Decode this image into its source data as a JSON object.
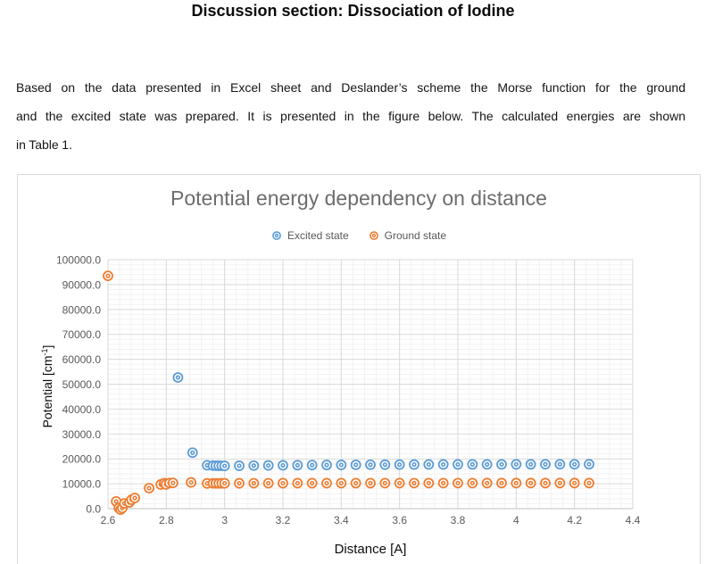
{
  "document": {
    "heading": "Discussion section: Dissociation of Iodine",
    "paragraph_lines": [
      "Based on the data presented in Excel sheet and Deslander’s scheme the Morse function for the ground",
      "and the excited state was prepared. It is presented in the figure below. The calculated energies are shown",
      "in Table 1."
    ]
  },
  "colors": {
    "excited_series": "#5B9BD5",
    "ground_series": "#ED7D31",
    "grid_major": "#d9d9d9",
    "grid_minor": "#f2f2f2",
    "axis_line": "#bfbfbf",
    "tick_text": "#595959",
    "title_text": "#6d6d6d",
    "axis_title_text": "#0b0b0b"
  },
  "chart_data": {
    "type": "scatter",
    "title": "Potential energy dependency on distance",
    "xlabel": "Distance [A]",
    "ylabel": "Potential [cm-1]",
    "ylabel_parts": {
      "base": "Potential [cm",
      "sup": "-1",
      "close": "]"
    },
    "xlim": [
      2.6,
      4.4
    ],
    "ylim": [
      0,
      100000
    ],
    "x_major_tick": 0.2,
    "x_minor_tick": 0.04,
    "y_major_tick": 10000,
    "y_minor_tick": 2000,
    "grid": true,
    "legend_position": "top",
    "x_tick_labels": [
      "2.6",
      "2.8",
      "3",
      "3.2",
      "3.4",
      "3.6",
      "3.8",
      "4",
      "4.2",
      "4.4"
    ],
    "y_tick_labels": [
      "0.0",
      "10000.0",
      "20000.0",
      "30000.0",
      "40000.0",
      "50000.0",
      "60000.0",
      "70000.0",
      "80000.0",
      "90000.0",
      "100000.0"
    ],
    "series": [
      {
        "name": "Excited state",
        "color": "#5B9BD5",
        "marker": "double-circle",
        "points": [
          [
            2.84,
            52700
          ],
          [
            2.89,
            22500
          ],
          [
            2.94,
            17430
          ],
          [
            2.96,
            17300
          ],
          [
            2.97,
            17260
          ],
          [
            2.98,
            17230
          ],
          [
            2.99,
            17200
          ],
          [
            3.0,
            17180
          ],
          [
            3.05,
            17230
          ],
          [
            3.1,
            17300
          ],
          [
            3.15,
            17360
          ],
          [
            3.2,
            17410
          ],
          [
            3.25,
            17460
          ],
          [
            3.3,
            17510
          ],
          [
            3.35,
            17550
          ],
          [
            3.4,
            17590
          ],
          [
            3.45,
            17620
          ],
          [
            3.5,
            17650
          ],
          [
            3.55,
            17680
          ],
          [
            3.6,
            17700
          ],
          [
            3.65,
            17720
          ],
          [
            3.7,
            17740
          ],
          [
            3.75,
            17760
          ],
          [
            3.8,
            17770
          ],
          [
            3.85,
            17780
          ],
          [
            3.9,
            17790
          ],
          [
            3.95,
            17800
          ],
          [
            4.0,
            17810
          ],
          [
            4.05,
            17820
          ],
          [
            4.1,
            17830
          ],
          [
            4.15,
            17840
          ],
          [
            4.2,
            17840
          ],
          [
            4.25,
            17850
          ]
        ]
      },
      {
        "name": "Ground state",
        "color": "#ED7D31",
        "marker": "double-circle",
        "points": [
          [
            2.6,
            93500
          ],
          [
            2.628,
            2900
          ],
          [
            2.637,
            250
          ],
          [
            2.643,
            -400
          ],
          [
            2.649,
            250
          ],
          [
            2.656,
            2100
          ],
          [
            2.673,
            2500
          ],
          [
            2.681,
            3600
          ],
          [
            2.692,
            4300
          ],
          [
            2.741,
            8250
          ],
          [
            2.781,
            9700
          ],
          [
            2.793,
            10250
          ],
          [
            2.799,
            9750
          ],
          [
            2.811,
            10300
          ],
          [
            2.823,
            10350
          ],
          [
            2.885,
            10550
          ],
          [
            2.94,
            10150
          ],
          [
            2.96,
            10170
          ],
          [
            2.97,
            10180
          ],
          [
            2.98,
            10180
          ],
          [
            2.99,
            10190
          ],
          [
            3.0,
            10190
          ],
          [
            3.05,
            10200
          ],
          [
            3.1,
            10210
          ],
          [
            3.15,
            10220
          ],
          [
            3.2,
            10230
          ],
          [
            3.25,
            10230
          ],
          [
            3.3,
            10240
          ],
          [
            3.35,
            10240
          ],
          [
            3.4,
            10250
          ],
          [
            3.45,
            10250
          ],
          [
            3.5,
            10250
          ],
          [
            3.55,
            10260
          ],
          [
            3.6,
            10260
          ],
          [
            3.65,
            10260
          ],
          [
            3.7,
            10270
          ],
          [
            3.75,
            10270
          ],
          [
            3.8,
            10270
          ],
          [
            3.85,
            10270
          ],
          [
            3.9,
            10280
          ],
          [
            3.95,
            10280
          ],
          [
            4.0,
            10280
          ],
          [
            4.05,
            10280
          ],
          [
            4.1,
            10280
          ],
          [
            4.15,
            10290
          ],
          [
            4.2,
            10290
          ],
          [
            4.25,
            10290
          ]
        ]
      }
    ]
  }
}
